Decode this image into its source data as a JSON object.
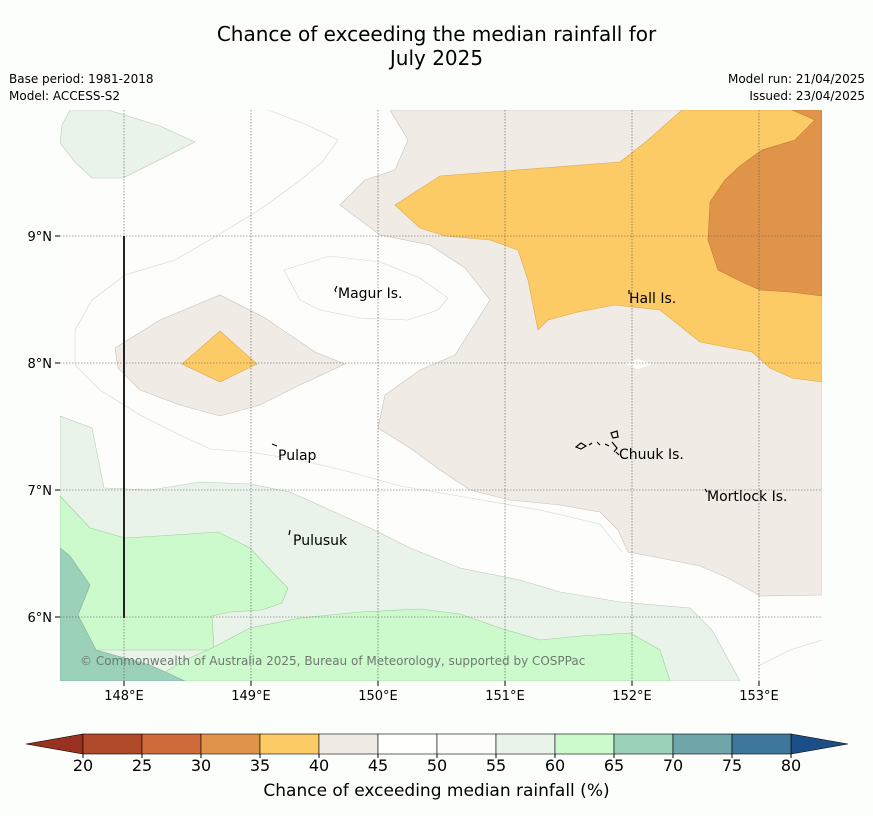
{
  "title": {
    "line1": "Chance of exceeding the median rainfall for",
    "line2": "July 2025"
  },
  "meta": {
    "base_period": "Base period: 1981-2018",
    "model": "Model: ACCESS-S2",
    "model_run": "Model run: 21/04/2025",
    "issued": "Issued: 23/04/2025"
  },
  "axes": {
    "x_ticks": [
      "148°E",
      "149°E",
      "150°E",
      "151°E",
      "152°E",
      "153°E"
    ],
    "y_ticks": [
      "9°N",
      "8°N",
      "7°N",
      "6°N"
    ]
  },
  "places": [
    {
      "name": "Magur Is."
    },
    {
      "name": "Hall Is."
    },
    {
      "name": "Pulap"
    },
    {
      "name": "Chuuk Is."
    },
    {
      "name": "Mortlock Is."
    },
    {
      "name": "Pulusuk"
    }
  ],
  "copyright": "© Commonwealth of Australia 2025, Bureau of Meteorology, supported by COSPPac",
  "colorbar": {
    "label": "Chance of exceeding median rainfall (%)",
    "ticks": [
      "20",
      "25",
      "30",
      "35",
      "40",
      "45",
      "50",
      "55",
      "60",
      "65",
      "70",
      "75",
      "80"
    ],
    "colors": [
      "#b0482a",
      "#cf6a3a",
      "#e09449",
      "#fdcb66",
      "#f0ebe5",
      "#fefefc",
      "#fdfefc",
      "#eaf3ea",
      "#ccfacc",
      "#9bd0b9",
      "#6fa6aa",
      "#3f769b"
    ],
    "under_color": "#983220",
    "over_color": "#1c4f88"
  },
  "map_colors": {
    "band_35_40": "#fdcb66",
    "band_30_35": "#e09449",
    "band_40_45": "#f0ebe5",
    "band_55_60": "#eaf3ea",
    "band_60_65": "#ccfacc",
    "band_65_70": "#9bd0b9"
  }
}
